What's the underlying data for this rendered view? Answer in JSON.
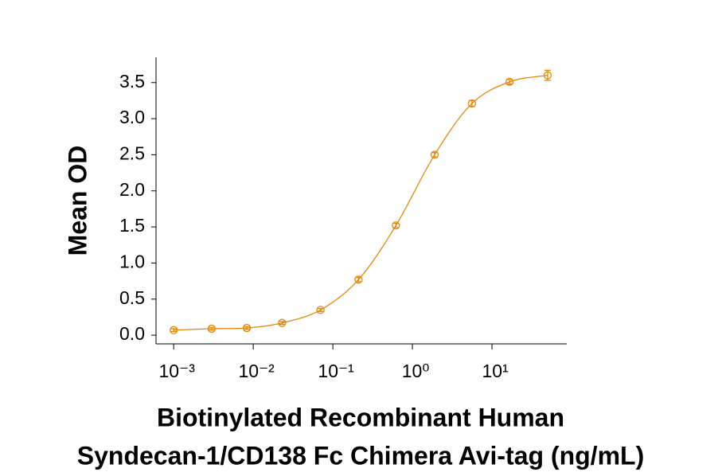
{
  "chart_data": {
    "type": "scatter",
    "ylabel": "Mean OD",
    "xlabel": [
      "Biotinylated Recombinant Human",
      "Syndecan-1/CD138 Fc Chimera Avi-tag (ng/mL)"
    ],
    "xscale": "log",
    "xlim": [
      0.0006,
      87
    ],
    "ylim": [
      -0.12,
      3.85
    ],
    "xticks": [
      {
        "value": 0.001,
        "label": "10⁻³"
      },
      {
        "value": 0.01,
        "label": "10⁻²"
      },
      {
        "value": 0.1,
        "label": "10⁻¹"
      },
      {
        "value": 1,
        "label": "10⁰"
      },
      {
        "value": 10,
        "label": "10¹"
      }
    ],
    "yticks": [
      {
        "value": 0,
        "label": "0.0"
      },
      0.5,
      {
        "value": 1,
        "label": "1.0"
      },
      1.5,
      {
        "value": 2,
        "label": "2.0"
      },
      2.5,
      {
        "value": 3,
        "label": "3.0"
      },
      3.5
    ],
    "fit_curve": true,
    "series": [
      {
        "color": "#e0890f",
        "x": [
          0.001,
          0.003,
          0.0083,
          0.023,
          0.07,
          0.21,
          0.62,
          1.9,
          5.6,
          16.6,
          50
        ],
        "values": [
          0.07,
          0.09,
          0.1,
          0.17,
          0.35,
          0.77,
          1.52,
          2.5,
          3.21,
          3.51,
          3.6
        ],
        "errors": [
          0.02,
          0.02,
          0.02,
          0.02,
          0.02,
          0.03,
          0.03,
          0.03,
          0.04,
          0.03,
          0.07
        ]
      }
    ]
  }
}
